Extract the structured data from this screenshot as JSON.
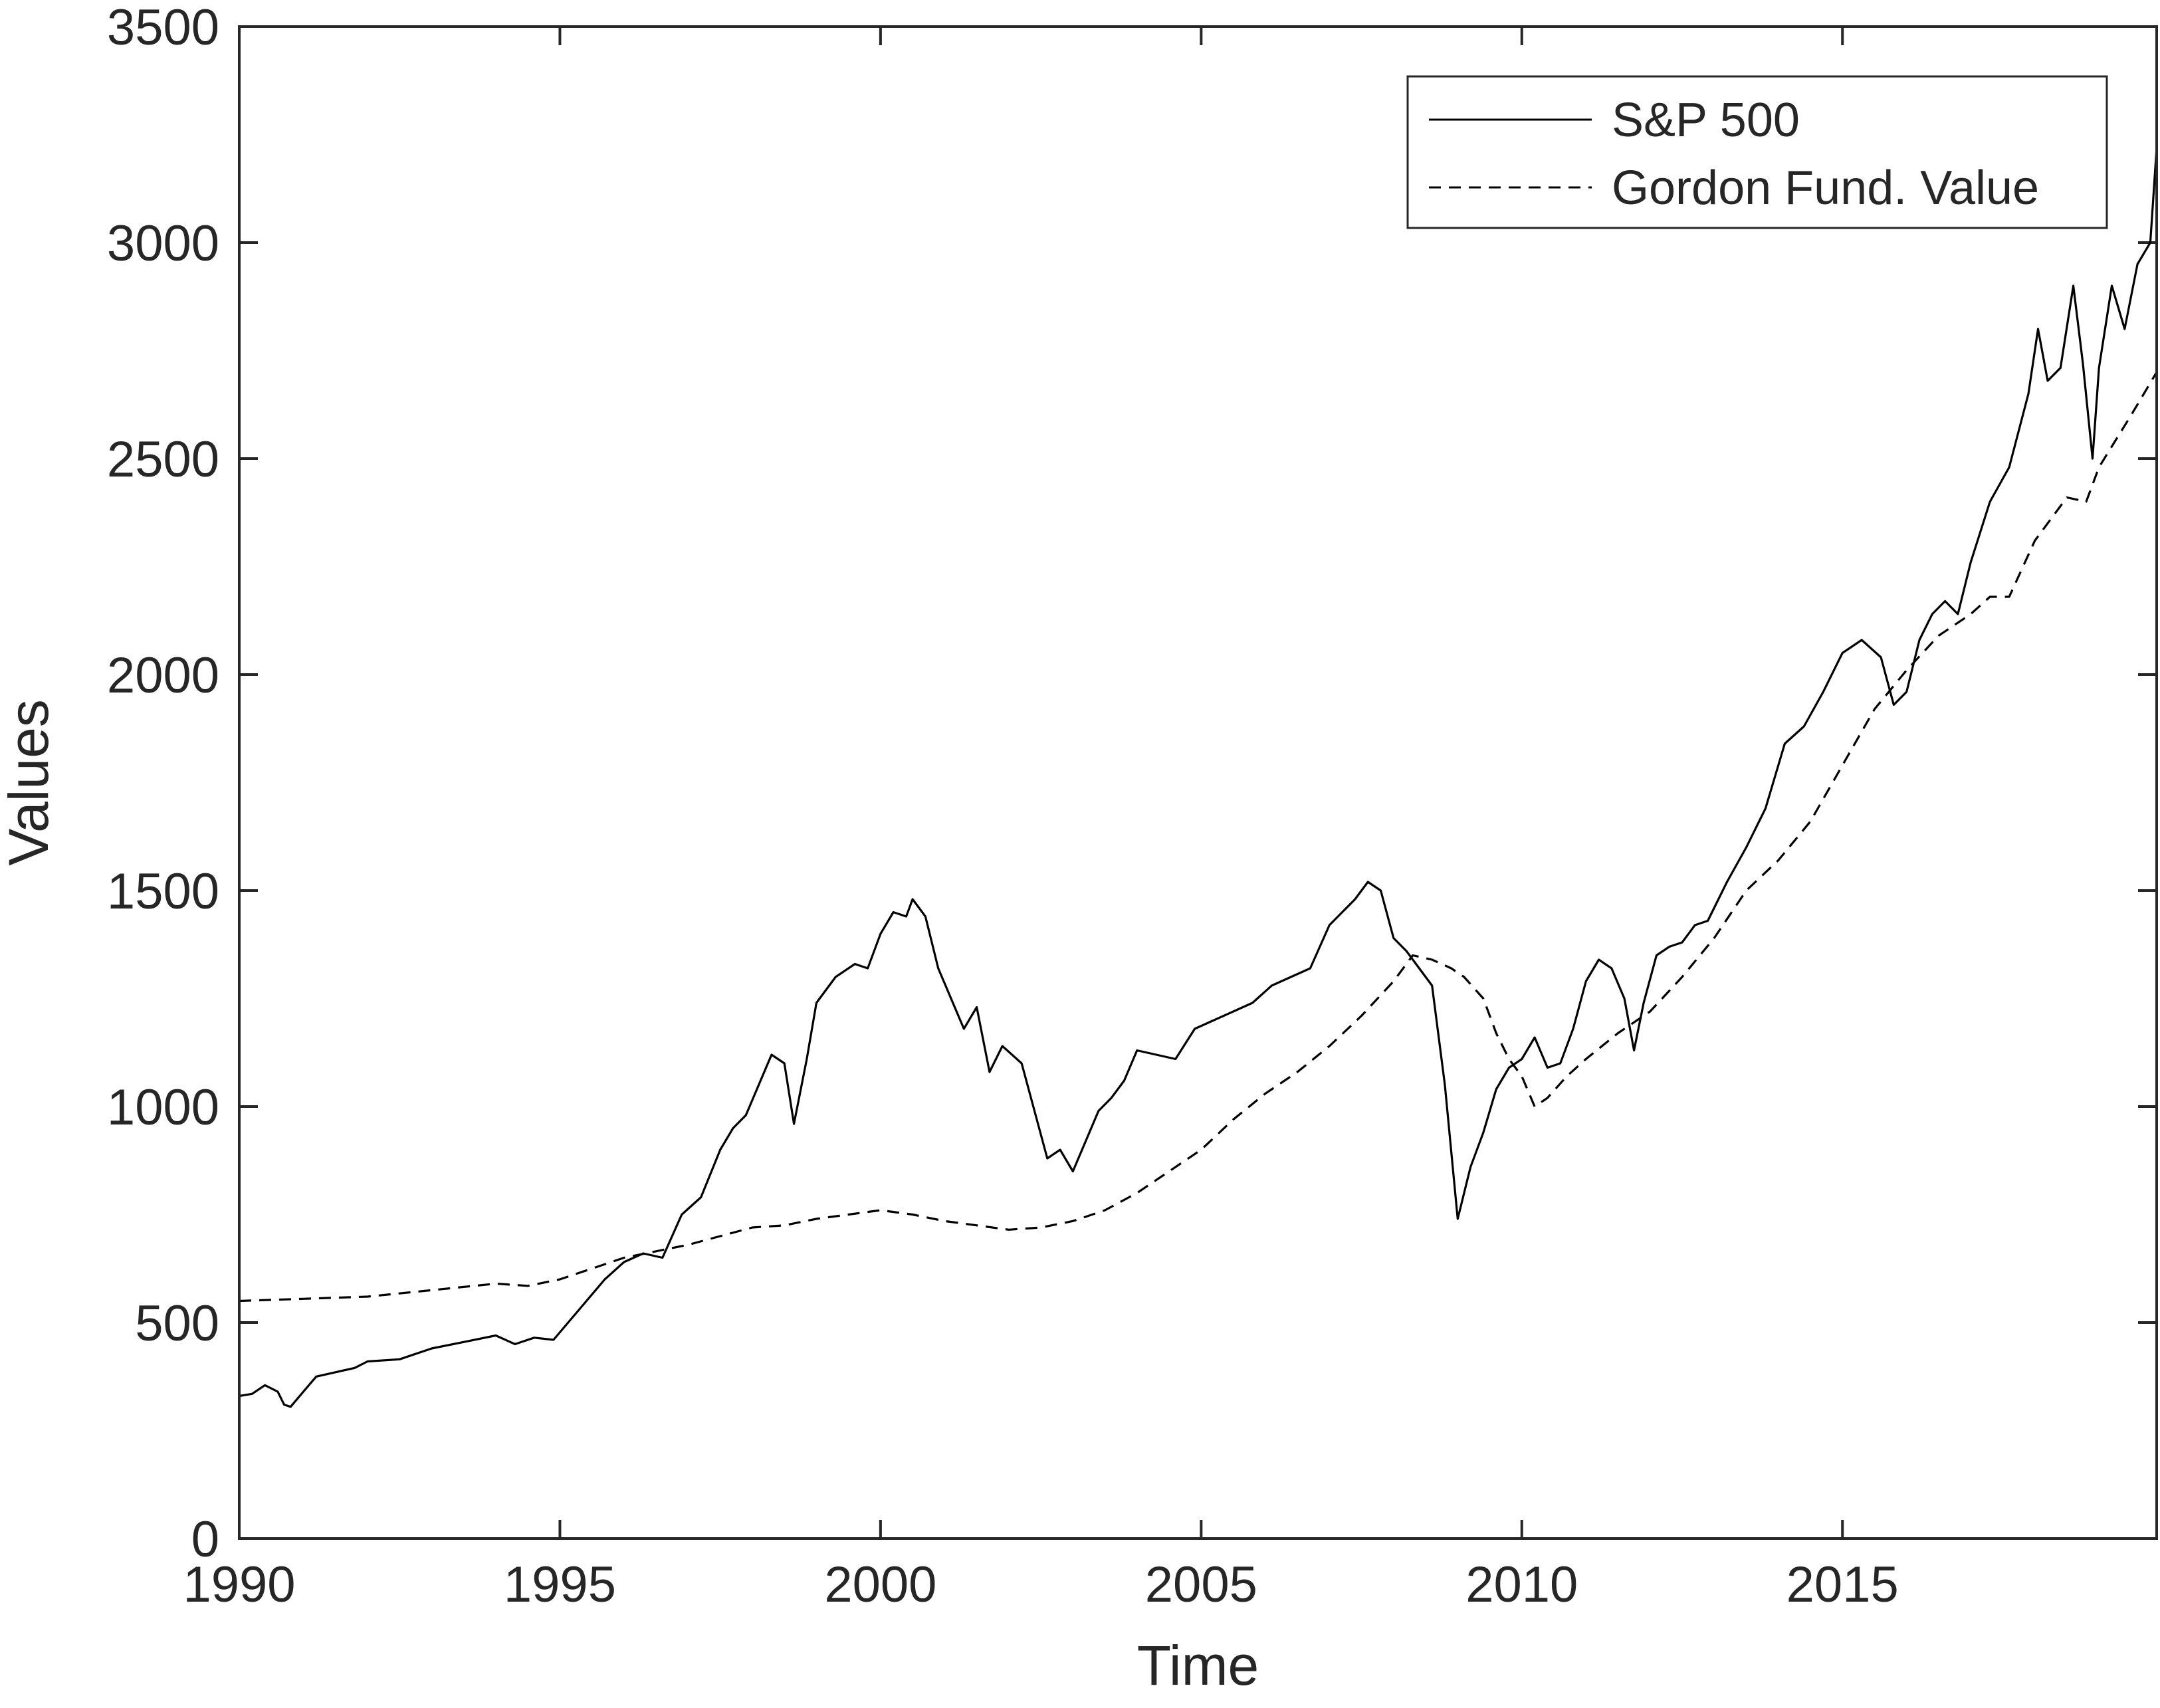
{
  "chart_data": {
    "type": "line",
    "title": "",
    "xlabel": "Time",
    "ylabel": "Values",
    "xlim": [
      1990,
      2019.9
    ],
    "ylim": [
      0,
      3500
    ],
    "x_ticks": [
      1990,
      1995,
      2000,
      2005,
      2010,
      2015
    ],
    "x_tick_labels": [
      "1990",
      "1995",
      "2000",
      "2005",
      "2010",
      "2015"
    ],
    "y_ticks": [
      0,
      500,
      1000,
      1500,
      2000,
      2500,
      3000,
      3500
    ],
    "y_tick_labels": [
      "0",
      "500",
      "1000",
      "1500",
      "2000",
      "2500",
      "3000",
      "3500"
    ],
    "grid": false,
    "legend_position": "top-right",
    "series": [
      {
        "name": "S&P 500",
        "line_style": "solid",
        "color": "#000000",
        "x": [
          1990.0,
          1990.2,
          1990.4,
          1990.6,
          1990.7,
          1990.8,
          1991.0,
          1991.2,
          1991.5,
          1991.8,
          1992.0,
          1992.5,
          1993.0,
          1993.5,
          1994.0,
          1994.3,
          1994.6,
          1994.9,
          1995.3,
          1995.7,
          1996.0,
          1996.3,
          1996.6,
          1996.9,
          1997.2,
          1997.5,
          1997.7,
          1997.9,
          1998.1,
          1998.3,
          1998.5,
          1998.65,
          1998.85,
          1999.0,
          1999.3,
          1999.6,
          1999.8,
          2000.0,
          2000.2,
          2000.4,
          2000.5,
          2000.7,
          2000.9,
          2001.1,
          2001.3,
          2001.5,
          2001.7,
          2001.9,
          2002.2,
          2002.4,
          2002.6,
          2002.8,
          2003.0,
          2003.2,
          2003.4,
          2003.6,
          2003.8,
          2004.0,
          2004.3,
          2004.6,
          2004.9,
          2005.2,
          2005.5,
          2005.8,
          2006.1,
          2006.4,
          2006.7,
          2007.0,
          2007.2,
          2007.4,
          2007.6,
          2007.8,
          2008.0,
          2008.2,
          2008.4,
          2008.6,
          2008.8,
          2009.0,
          2009.2,
          2009.4,
          2009.6,
          2009.8,
          2010.0,
          2010.2,
          2010.4,
          2010.6,
          2010.8,
          2011.0,
          2011.2,
          2011.4,
          2011.6,
          2011.75,
          2011.9,
          2012.1,
          2012.3,
          2012.5,
          2012.7,
          2012.9,
          2013.2,
          2013.5,
          2013.8,
          2014.1,
          2014.4,
          2014.7,
          2015.0,
          2015.3,
          2015.6,
          2015.8,
          2016.0,
          2016.2,
          2016.4,
          2016.6,
          2016.8,
          2017.0,
          2017.3,
          2017.6,
          2017.9,
          2018.05,
          2018.2,
          2018.4,
          2018.6,
          2018.75,
          2018.9,
          2019.0,
          2019.2,
          2019.4,
          2019.6,
          2019.8,
          2019.9
        ],
        "values": [
          330,
          335,
          355,
          340,
          310,
          305,
          340,
          375,
          385,
          395,
          410,
          415,
          440,
          455,
          470,
          450,
          465,
          460,
          530,
          600,
          640,
          660,
          650,
          750,
          790,
          900,
          950,
          980,
          1050,
          1120,
          1100,
          960,
          1110,
          1240,
          1300,
          1330,
          1320,
          1400,
          1450,
          1440,
          1480,
          1440,
          1320,
          1250,
          1180,
          1230,
          1080,
          1140,
          1100,
          990,
          880,
          900,
          850,
          920,
          990,
          1020,
          1060,
          1130,
          1120,
          1110,
          1180,
          1200,
          1220,
          1240,
          1280,
          1300,
          1320,
          1420,
          1450,
          1480,
          1520,
          1500,
          1390,
          1360,
          1320,
          1280,
          1050,
          740,
          860,
          940,
          1040,
          1090,
          1110,
          1160,
          1090,
          1100,
          1180,
          1290,
          1340,
          1320,
          1250,
          1130,
          1240,
          1350,
          1370,
          1380,
          1420,
          1430,
          1520,
          1600,
          1690,
          1840,
          1880,
          1960,
          2050,
          2080,
          2040,
          1930,
          1960,
          2080,
          2140,
          2170,
          2140,
          2260,
          2400,
          2480,
          2650,
          2800,
          2680,
          2710,
          2900,
          2720,
          2500,
          2710,
          2900,
          2800,
          2950,
          3000,
          3220
        ]
      },
      {
        "name": "Gordon Fund. Value",
        "line_style": "dashed",
        "color": "#000000",
        "x": [
          1990.0,
          1991.0,
          1992.0,
          1993.0,
          1994.0,
          1994.5,
          1995.0,
          1995.5,
          1996.0,
          1996.5,
          1997.0,
          1997.5,
          1998.0,
          1998.5,
          1999.0,
          1999.5,
          2000.0,
          2000.5,
          2001.0,
          2001.5,
          2002.0,
          2002.5,
          2003.0,
          2003.5,
          2004.0,
          2004.5,
          2005.0,
          2005.5,
          2006.0,
          2006.5,
          2007.0,
          2007.5,
          2008.0,
          2008.3,
          2008.6,
          2008.9,
          2009.1,
          2009.4,
          2009.6,
          2009.8,
          2010.0,
          2010.2,
          2010.4,
          2010.7,
          2011.0,
          2011.5,
          2012.0,
          2012.5,
          2013.0,
          2013.5,
          2014.0,
          2014.5,
          2015.0,
          2015.5,
          2016.0,
          2016.5,
          2017.0,
          2017.3,
          2017.6,
          2018.0,
          2018.5,
          2018.8,
          2019.0,
          2019.5,
          2019.9
        ],
        "values": [
          550,
          555,
          560,
          575,
          590,
          585,
          600,
          625,
          650,
          665,
          680,
          700,
          720,
          725,
          740,
          750,
          760,
          750,
          735,
          725,
          715,
          720,
          735,
          760,
          800,
          850,
          900,
          970,
          1030,
          1080,
          1140,
          1210,
          1290,
          1350,
          1340,
          1320,
          1300,
          1250,
          1170,
          1110,
          1070,
          1000,
          1020,
          1070,
          1110,
          1170,
          1220,
          1300,
          1390,
          1500,
          1570,
          1660,
          1790,
          1920,
          2010,
          2090,
          2140,
          2180,
          2180,
          2310,
          2410,
          2400,
          2480,
          2600,
          2700
        ]
      }
    ]
  }
}
